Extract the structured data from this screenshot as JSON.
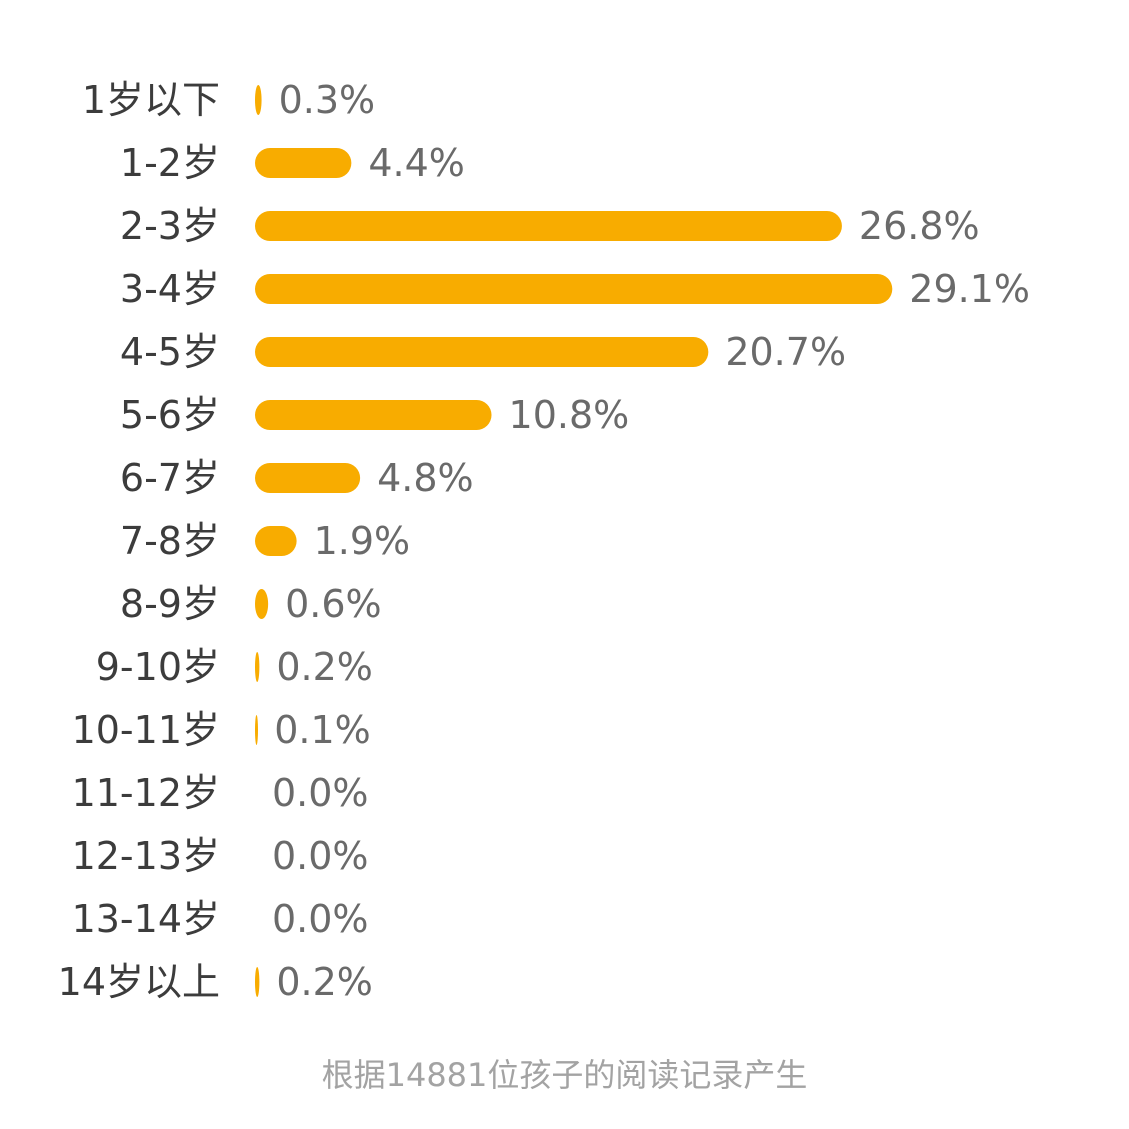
{
  "chart_data": {
    "type": "bar",
    "orientation": "horizontal",
    "categories": [
      "1岁以下",
      "1-2岁",
      "2-3岁",
      "3-4岁",
      "4-5岁",
      "5-6岁",
      "6-7岁",
      "7-8岁",
      "8-9岁",
      "9-10岁",
      "10-11岁",
      "11-12岁",
      "12-13岁",
      "13-14岁",
      "14岁以上"
    ],
    "values": [
      0.3,
      4.4,
      26.8,
      29.1,
      20.7,
      10.8,
      4.8,
      1.9,
      0.6,
      0.2,
      0.1,
      0.0,
      0.0,
      0.0,
      0.2
    ],
    "value_labels": [
      "0.3%",
      "4.4%",
      "26.8%",
      "29.1%",
      "20.7%",
      "10.8%",
      "4.8%",
      "1.9%",
      "0.6%",
      "0.2%",
      "0.1%",
      "0.0%",
      "0.0%",
      "0.0%",
      "0.2%"
    ],
    "unit": "%",
    "bar_color": "#f8ac00",
    "grid": false,
    "legend": "none"
  },
  "footnote": "根据14881位孩子的阅读记录产生"
}
